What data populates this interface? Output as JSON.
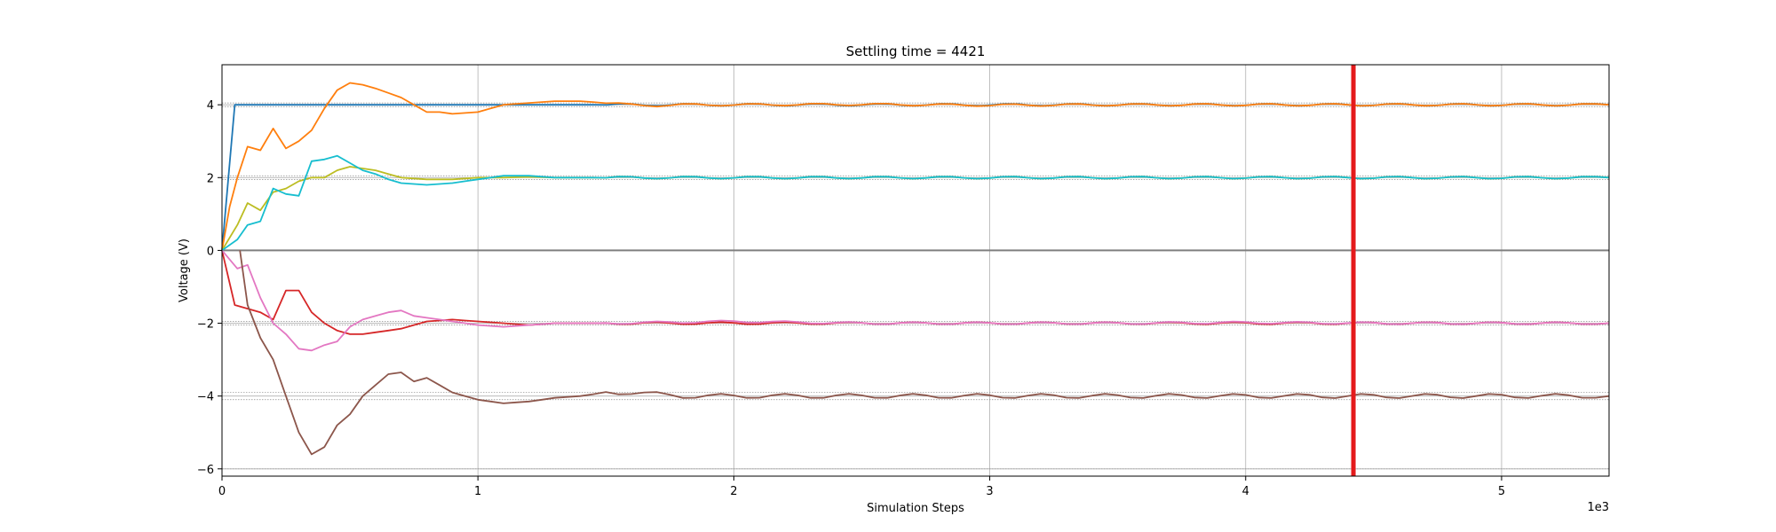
{
  "chart_data": {
    "type": "line",
    "title": "Settling time = 4421",
    "xlabel": "Simulation Steps",
    "ylabel": "Voltage (V)",
    "x_multiplier_label": "1e3",
    "xlim": [
      0,
      5420
    ],
    "ylim": [
      -6.2,
      5.1
    ],
    "x_ticks": [
      0,
      1000,
      2000,
      3000,
      4000,
      5000
    ],
    "x_tick_labels": [
      "0",
      "1",
      "2",
      "3",
      "4",
      "5"
    ],
    "y_ticks": [
      -6,
      -4,
      -2,
      0,
      2,
      4
    ],
    "y_tick_labels": [
      "−6",
      "−4",
      "−2",
      "0",
      "2",
      "4"
    ],
    "grid": true,
    "settling_time": 4421,
    "settling_line_color": "#e41a1c",
    "reference_bands": [
      -6.0,
      -4.1,
      -3.9,
      -2.05,
      -1.95,
      1.95,
      2.05,
      3.95,
      4.05
    ],
    "zero_line": 0,
    "series": [
      {
        "color": "#1f77b4",
        "x": [
          0,
          50,
          100,
          5420
        ],
        "y": [
          0,
          4.0,
          4.0,
          4.0
        ]
      },
      {
        "color": "#ff7f0e",
        "x": [
          0,
          30,
          60,
          100,
          150,
          200,
          250,
          300,
          350,
          400,
          450,
          500,
          550,
          600,
          700,
          750,
          800,
          850,
          900,
          1000,
          1100,
          1200,
          1300,
          1400,
          1500,
          1600,
          1700,
          1800,
          2000,
          2500,
          3000,
          3500,
          4000,
          4500,
          5000,
          5420
        ],
        "y": [
          0,
          1.2,
          2.0,
          2.85,
          2.75,
          3.35,
          2.8,
          3.0,
          3.3,
          3.9,
          4.4,
          4.6,
          4.55,
          4.45,
          4.2,
          4.0,
          3.8,
          3.8,
          3.75,
          3.8,
          4.0,
          4.05,
          4.1,
          4.1,
          4.05,
          4.0,
          3.98,
          4.0,
          4.0,
          4.01,
          3.99,
          4.0,
          4.0,
          4.0,
          4.0,
          4.0
        ]
      },
      {
        "color": "#bcbd22",
        "x": [
          0,
          60,
          100,
          150,
          200,
          250,
          300,
          350,
          400,
          450,
          500,
          550,
          600,
          650,
          700,
          800,
          900,
          1000,
          1100,
          1200,
          1300,
          1500,
          2000,
          2500,
          3000,
          3500,
          4000,
          4500,
          5000,
          5420
        ],
        "y": [
          0,
          0.7,
          1.3,
          1.1,
          1.6,
          1.7,
          1.9,
          2.0,
          2.0,
          2.2,
          2.3,
          2.25,
          2.2,
          2.1,
          2.0,
          1.95,
          1.95,
          2.0,
          2.0,
          2.02,
          2.0,
          2.0,
          2.0,
          2.0,
          2.0,
          2.0,
          2.0,
          2.0,
          2.0,
          2.0
        ]
      },
      {
        "color": "#17becf",
        "x": [
          0,
          60,
          100,
          150,
          200,
          250,
          300,
          350,
          400,
          450,
          500,
          550,
          600,
          650,
          700,
          800,
          900,
          1000,
          1100,
          1200,
          1300,
          1500,
          2000,
          2500,
          3000,
          3500,
          4000,
          4500,
          5000,
          5420
        ],
        "y": [
          0,
          0.3,
          0.7,
          0.8,
          1.7,
          1.55,
          1.5,
          2.45,
          2.5,
          2.6,
          2.4,
          2.2,
          2.1,
          1.95,
          1.85,
          1.8,
          1.85,
          1.95,
          2.05,
          2.05,
          2.0,
          2.0,
          2.0,
          2.0,
          2.0,
          2.0,
          2.0,
          2.0,
          2.0,
          2.0
        ]
      },
      {
        "color": "#d62728",
        "x": [
          0,
          50,
          100,
          150,
          200,
          250,
          300,
          350,
          400,
          450,
          500,
          550,
          600,
          650,
          700,
          800,
          900,
          1000,
          1100,
          1200,
          1300,
          1500,
          2000,
          2500,
          3000,
          3500,
          4000,
          4500,
          5000,
          5420
        ],
        "y": [
          0,
          -1.5,
          -1.6,
          -1.7,
          -1.9,
          -1.1,
          -1.1,
          -1.7,
          -2.0,
          -2.2,
          -2.3,
          -2.3,
          -2.25,
          -2.2,
          -2.15,
          -1.95,
          -1.9,
          -1.95,
          -2.0,
          -2.05,
          -2.0,
          -2.0,
          -2.0,
          -2.0,
          -2.0,
          -2.0,
          -2.0,
          -2.0,
          -2.0,
          -2.0
        ]
      },
      {
        "color": "#e377c2",
        "x": [
          0,
          60,
          100,
          150,
          200,
          250,
          300,
          350,
          400,
          450,
          500,
          550,
          600,
          650,
          700,
          750,
          800,
          900,
          1000,
          1100,
          1200,
          1300,
          1500,
          2000,
          2500,
          3000,
          3500,
          4000,
          4500,
          5000,
          5420
        ],
        "y": [
          0,
          -0.5,
          -0.4,
          -1.3,
          -2.0,
          -2.3,
          -2.7,
          -2.75,
          -2.6,
          -2.5,
          -2.1,
          -1.9,
          -1.8,
          -1.7,
          -1.65,
          -1.8,
          -1.85,
          -1.95,
          -2.05,
          -2.1,
          -2.05,
          -2.0,
          -2.0,
          -1.95,
          -2.0,
          -2.0,
          -2.0,
          -1.98,
          -2.0,
          -2.0,
          -2.0
        ]
      },
      {
        "color": "#8c564b",
        "x": [
          70,
          100,
          150,
          200,
          250,
          300,
          350,
          400,
          450,
          500,
          550,
          600,
          650,
          700,
          750,
          800,
          850,
          900,
          1000,
          1100,
          1200,
          1300,
          1400,
          1500,
          1600,
          1700,
          1800,
          2000,
          2500,
          3000,
          3500,
          4000,
          4500,
          5000,
          5420
        ],
        "y": [
          0,
          -1.5,
          -2.4,
          -3.0,
          -4.0,
          -5.0,
          -5.6,
          -5.4,
          -4.8,
          -4.5,
          -4.0,
          -3.7,
          -3.4,
          -3.35,
          -3.6,
          -3.5,
          -3.7,
          -3.9,
          -4.1,
          -4.2,
          -4.15,
          -4.05,
          -4.0,
          -3.9,
          -3.9,
          -3.95,
          -4.0,
          -4.0,
          -4.0,
          -4.0,
          -4.0,
          -4.0,
          -4.0,
          -4.0,
          -4.0
        ]
      }
    ]
  }
}
